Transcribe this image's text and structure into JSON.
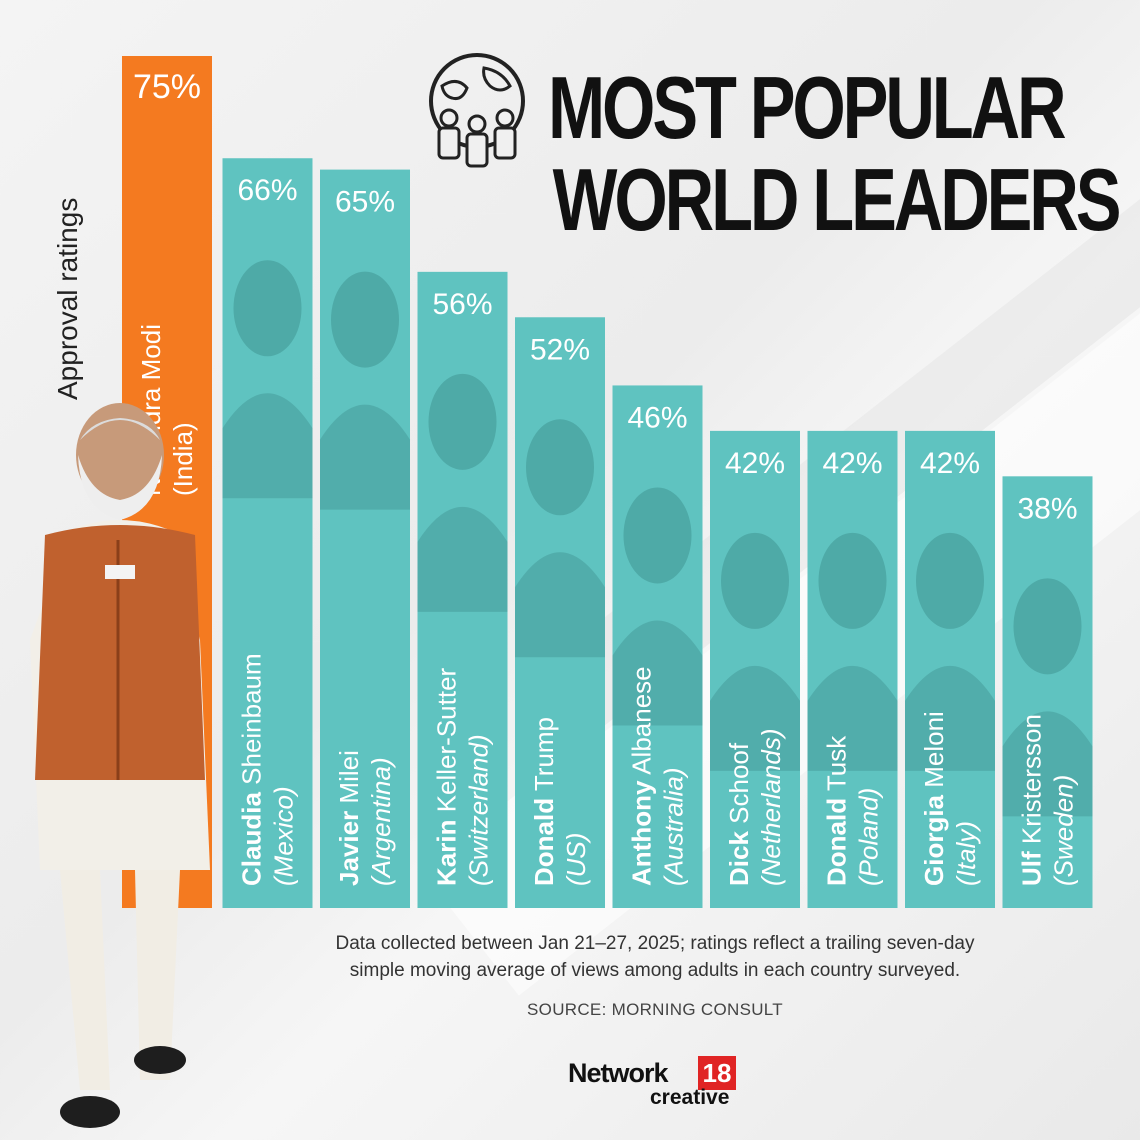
{
  "title_line1": "MOST POPULAR",
  "title_line2": "WORLD LEADERS",
  "chart_data": {
    "type": "bar",
    "ylabel": "Approval ratings",
    "categories": [
      {
        "first": "Narendra Modi",
        "last": "",
        "country": "(India)",
        "value": 75,
        "label": "75%"
      },
      {
        "first": "Claudia",
        "last": " Sheinbaum",
        "country": "(Mexico)",
        "value": 66,
        "label": "66%"
      },
      {
        "first": "Javier",
        "last": " Milei",
        "country": "(Argentina)",
        "value": 65,
        "label": "65%"
      },
      {
        "first": "Karin",
        "last": " Keller-Sutter",
        "country": "(Switzerland)",
        "value": 56,
        "label": "56%"
      },
      {
        "first": "Donald",
        "last": " Trump",
        "country": "(US)",
        "value": 52,
        "label": "52%"
      },
      {
        "first": "Anthony",
        "last": " Albanese",
        "country": "(Australia)",
        "value": 46,
        "label": "46%"
      },
      {
        "first": "Dick",
        "last": " Schoof",
        "country": "(Netherlands)",
        "value": 42,
        "label": "42%"
      },
      {
        "first": "Donald",
        "last": " Tusk",
        "country": "(Poland)",
        "value": 42,
        "label": "42%"
      },
      {
        "first": "Giorgia",
        "last": " Meloni",
        "country": "(Italy)",
        "value": 42,
        "label": "42%"
      },
      {
        "first": "Ulf",
        "last": " Kristersson",
        "country": "(Sweden)",
        "value": 38,
        "label": "38%"
      }
    ],
    "colors": {
      "highlight": "#f47a20",
      "bar": "#5fc3c0"
    }
  },
  "note_line1": "Data collected between Jan 21–27, 2025; ratings reflect a trailing seven-day",
  "note_line2": "simple moving average of views among adults in each country surveyed.",
  "source": "SOURCE: MORNING CONSULT",
  "logo": {
    "network": "Network",
    "badge": "18",
    "creative": "creative"
  }
}
